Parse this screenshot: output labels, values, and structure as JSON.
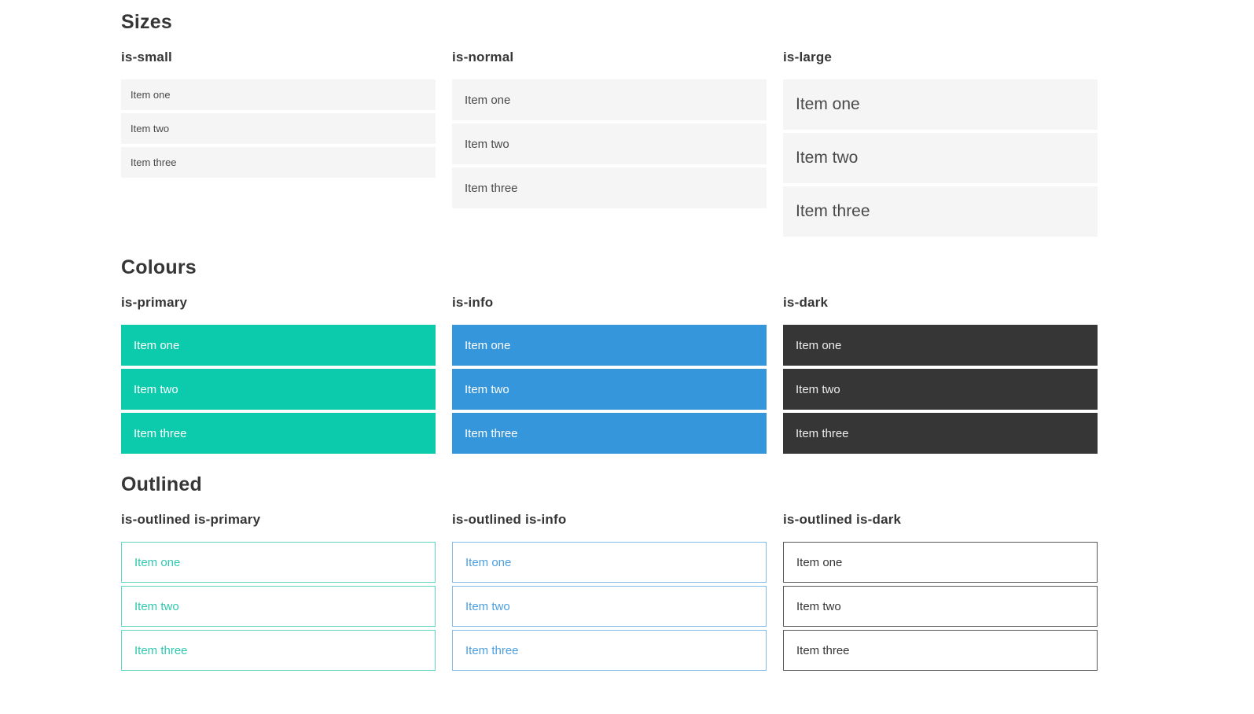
{
  "sections": [
    {
      "title": "Sizes",
      "groups": [
        {
          "label": "is-small",
          "variant": "small",
          "items": [
            "Item one",
            "Item two",
            "Item three"
          ]
        },
        {
          "label": "is-normal",
          "variant": "normal",
          "items": [
            "Item one",
            "Item two",
            "Item three"
          ]
        },
        {
          "label": "is-large",
          "variant": "large",
          "items": [
            "Item one",
            "Item two",
            "Item three"
          ]
        }
      ]
    },
    {
      "title": "Colours",
      "groups": [
        {
          "label": "is-primary",
          "variant": "primary",
          "items": [
            "Item one",
            "Item two",
            "Item three"
          ]
        },
        {
          "label": "is-info",
          "variant": "info",
          "items": [
            "Item one",
            "Item two",
            "Item three"
          ]
        },
        {
          "label": "is-dark",
          "variant": "dark",
          "items": [
            "Item one",
            "Item two",
            "Item three"
          ]
        }
      ]
    },
    {
      "title": "Outlined",
      "groups": [
        {
          "label": "is-outlined is-primary",
          "variant": "outlined-primary",
          "items": [
            "Item one",
            "Item two",
            "Item three"
          ]
        },
        {
          "label": "is-outlined is-info",
          "variant": "outlined-info",
          "items": [
            "Item one",
            "Item two",
            "Item three"
          ]
        },
        {
          "label": "is-outlined is-dark",
          "variant": "outlined-dark",
          "items": [
            "Item one",
            "Item two",
            "Item three"
          ]
        }
      ]
    }
  ],
  "colors": {
    "heading_text": "#363636",
    "item_bg": "#f5f5f5",
    "item_text": "#4a4a4a",
    "primary": "#0ccbad",
    "info": "#3596dc",
    "dark": "#363636",
    "colored_item_text": "#ffffff",
    "dark_item_text": "#ededed",
    "outlined_primary_border": "#62d5c2",
    "outlined_primary_text": "#2fc9ae",
    "outlined_info_border": "#7fbce9",
    "outlined_info_text": "#4a9fe1",
    "outlined_dark_border": "#585858",
    "outlined_dark_text": "#363636"
  }
}
